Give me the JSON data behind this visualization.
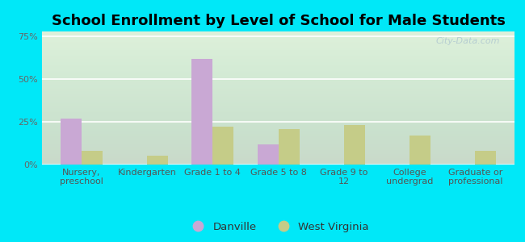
{
  "title": "School Enrollment by Level of School for Male Students",
  "categories": [
    "Nursery,\npreschool",
    "Kindergarten",
    "Grade 1 to 4",
    "Grade 5 to 8",
    "Grade 9 to\n12",
    "College\nundergrad",
    "Graduate or\nprofessional"
  ],
  "danville": [
    27,
    0,
    62,
    12,
    0,
    0,
    0
  ],
  "west_virginia": [
    8,
    5,
    22,
    21,
    23,
    17,
    8
  ],
  "danville_color": "#c9a8d4",
  "west_virginia_color": "#c5cc88",
  "background_outer": "#00e8f8",
  "background_inner_top": "#e0f0e0",
  "background_inner_bottom": "#f5faf0",
  "yticks": [
    0,
    25,
    50,
    75
  ],
  "ylim": [
    0,
    78
  ],
  "legend_danville": "Danville",
  "legend_wv": "West Virginia",
  "title_fontsize": 13,
  "tick_fontsize": 8,
  "watermark": "City-Data.com"
}
